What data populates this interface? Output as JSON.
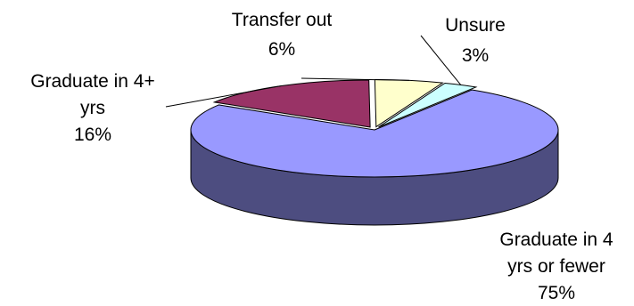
{
  "chart_data": {
    "type": "pie",
    "style": "3d-exploded",
    "categories": [
      "Graduate in 4 yrs or fewer",
      "Graduate in 4+ yrs",
      "Transfer out",
      "Unsure"
    ],
    "values": [
      75,
      16,
      6,
      3
    ],
    "value_labels": [
      "75%",
      "16%",
      "6%",
      "3%"
    ],
    "label_lines": [
      [
        "Graduate in 4",
        "yrs or fewer",
        "75%"
      ],
      [
        "Graduate in 4+",
        "yrs",
        "16%"
      ],
      [
        "Transfer out",
        "6%"
      ],
      [
        "Unsure",
        "3%"
      ]
    ],
    "colors": {
      "top": [
        "#9999ff",
        "#993366",
        "#ffffcc",
        "#ccffff"
      ],
      "side": [
        "#4d4d80",
        "#4d1a33",
        "#808066",
        "#668080"
      ]
    },
    "legend": "none",
    "title": ""
  }
}
